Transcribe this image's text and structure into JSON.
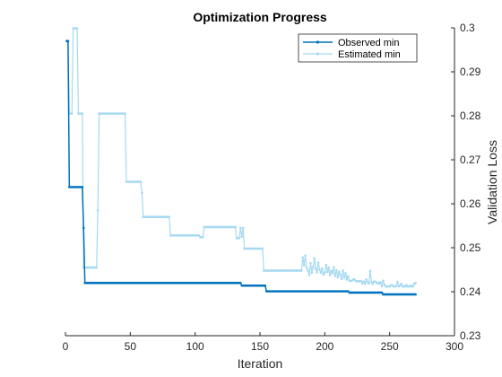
{
  "chart_data": {
    "type": "line",
    "title": "Optimization Progress",
    "xlabel": "Iteration",
    "ylabel": "Validation Loss",
    "xlim": [
      0,
      300
    ],
    "ylim": [
      0.23,
      0.3
    ],
    "x_ticks": [
      0,
      50,
      100,
      150,
      200,
      250,
      300
    ],
    "y_ticks": [
      0.23,
      0.24,
      0.25,
      0.26,
      0.27,
      0.28,
      0.29,
      0.3
    ],
    "x_tick_labels": [
      "0",
      "50",
      "100",
      "150",
      "200",
      "250",
      "300"
    ],
    "y_tick_labels": [
      "0.23",
      "0.24",
      "0.25",
      "0.26",
      "0.27",
      "0.28",
      "0.29",
      "0.3"
    ],
    "y_axis_side": "right",
    "grid": false,
    "legend_position": "top-right",
    "series": [
      {
        "name": "Observed min",
        "color": "#0072BD",
        "points": [
          [
            1,
            0.297
          ],
          [
            2,
            0.297
          ],
          [
            3,
            0.2638
          ],
          [
            13,
            0.2638
          ],
          [
            14,
            0.2545
          ],
          [
            15,
            0.242
          ],
          [
            135,
            0.242
          ],
          [
            136,
            0.2414
          ],
          [
            154,
            0.2414
          ],
          [
            155,
            0.2401
          ],
          [
            218,
            0.2401
          ],
          [
            219,
            0.2398
          ],
          [
            244,
            0.2398
          ],
          [
            245,
            0.2394
          ],
          [
            270,
            0.2394
          ]
        ]
      },
      {
        "name": "Estimated min",
        "color": "#A6D9F2",
        "points": [
          [
            1,
            0.297
          ],
          [
            2,
            0.297
          ],
          [
            3,
            0.2805
          ],
          [
            5,
            0.2805
          ],
          [
            6,
            0.2999
          ],
          [
            9,
            0.2999
          ],
          [
            10,
            0.2805
          ],
          [
            13,
            0.2805
          ],
          [
            14,
            0.2455
          ],
          [
            24,
            0.2455
          ],
          [
            25,
            0.2585
          ],
          [
            26,
            0.2805
          ],
          [
            46,
            0.2805
          ],
          [
            47,
            0.265
          ],
          [
            58,
            0.265
          ],
          [
            59,
            0.2625
          ],
          [
            60,
            0.257
          ],
          [
            80,
            0.257
          ],
          [
            81,
            0.2528
          ],
          [
            103,
            0.2528
          ],
          [
            104,
            0.2524
          ],
          [
            106,
            0.2524
          ],
          [
            107,
            0.2547
          ],
          [
            131,
            0.2547
          ],
          [
            132,
            0.2522
          ],
          [
            134,
            0.2522
          ],
          [
            135,
            0.2545
          ],
          [
            136,
            0.2525
          ],
          [
            137,
            0.2545
          ],
          [
            138,
            0.2498
          ],
          [
            152,
            0.2498
          ],
          [
            153,
            0.2448
          ],
          [
            182,
            0.2448
          ],
          [
            183,
            0.2478
          ],
          [
            184,
            0.246
          ],
          [
            185,
            0.2482
          ],
          [
            186,
            0.2455
          ],
          [
            187,
            0.2448
          ],
          [
            188,
            0.2438
          ],
          [
            189,
            0.2465
          ],
          [
            190,
            0.2443
          ],
          [
            191,
            0.2456
          ],
          [
            192,
            0.2476
          ],
          [
            193,
            0.2452
          ],
          [
            194,
            0.2444
          ],
          [
            195,
            0.2466
          ],
          [
            196,
            0.245
          ],
          [
            197,
            0.2443
          ],
          [
            198,
            0.2453
          ],
          [
            199,
            0.2439
          ],
          [
            200,
            0.2444
          ],
          [
            201,
            0.2461
          ],
          [
            202,
            0.2445
          ],
          [
            203,
            0.2455
          ],
          [
            204,
            0.2438
          ],
          [
            205,
            0.2447
          ],
          [
            206,
            0.2442
          ],
          [
            207,
            0.2456
          ],
          [
            208,
            0.2436
          ],
          [
            209,
            0.2449
          ],
          [
            210,
            0.2433
          ],
          [
            211,
            0.2445
          ],
          [
            212,
            0.2438
          ],
          [
            213,
            0.2429
          ],
          [
            214,
            0.2448
          ],
          [
            215,
            0.2432
          ],
          [
            216,
            0.2442
          ],
          [
            217,
            0.2428
          ],
          [
            218,
            0.2435
          ],
          [
            219,
            0.2425
          ],
          [
            221,
            0.2425
          ],
          [
            222,
            0.2428
          ],
          [
            224,
            0.2424
          ],
          [
            228,
            0.2424
          ],
          [
            229,
            0.2418
          ],
          [
            230,
            0.2423
          ],
          [
            231,
            0.2418
          ],
          [
            232,
            0.2428
          ],
          [
            233,
            0.2422
          ],
          [
            234,
            0.2419
          ],
          [
            235,
            0.2447
          ],
          [
            236,
            0.2422
          ],
          [
            237,
            0.2418
          ],
          [
            238,
            0.2423
          ],
          [
            240,
            0.242
          ],
          [
            242,
            0.2418
          ],
          [
            243,
            0.2422
          ],
          [
            244,
            0.2413
          ],
          [
            245,
            0.2425
          ],
          [
            246,
            0.2416
          ],
          [
            247,
            0.2412
          ],
          [
            250,
            0.2412
          ],
          [
            251,
            0.2415
          ],
          [
            253,
            0.2412
          ],
          [
            255,
            0.2413
          ],
          [
            256,
            0.2422
          ],
          [
            257,
            0.2412
          ],
          [
            258,
            0.2414
          ],
          [
            259,
            0.2418
          ],
          [
            260,
            0.2412
          ],
          [
            263,
            0.2415
          ],
          [
            264,
            0.2412
          ],
          [
            266,
            0.2414
          ],
          [
            267,
            0.2412
          ],
          [
            269,
            0.2418
          ],
          [
            270,
            0.242
          ]
        ]
      }
    ]
  }
}
